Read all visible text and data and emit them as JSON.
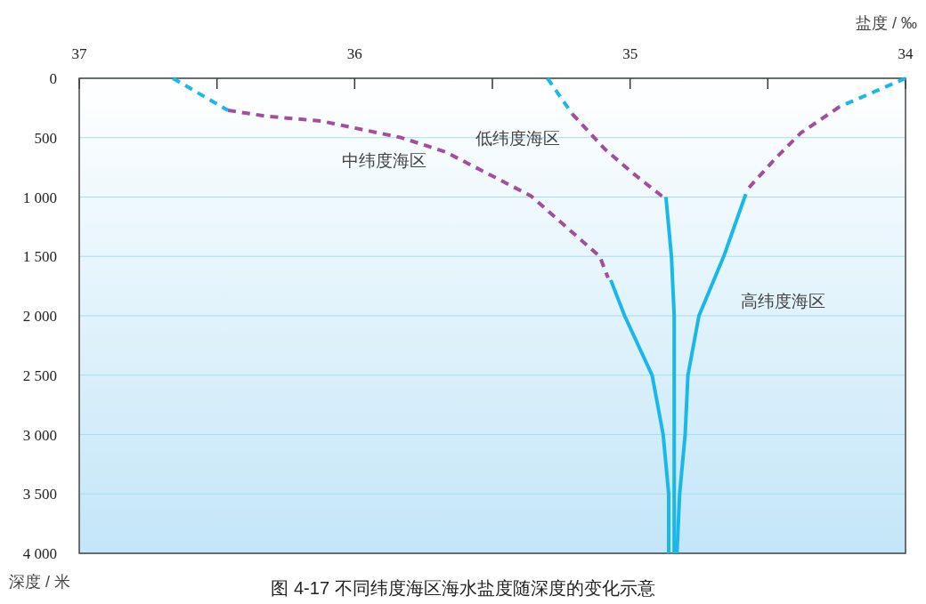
{
  "chart_data": {
    "type": "line",
    "xlabel": "盐度 / ‰",
    "ylabel": "深度 / 米",
    "xlim": [
      37,
      34
    ],
    "xticks": [
      37,
      {
        "value": 36.5,
        "label": null
      },
      36,
      {
        "value": 35.5,
        "label": null
      },
      35,
      {
        "value": 34.5,
        "label": null
      },
      34
    ],
    "ylim": [
      4000,
      0
    ],
    "yticks": [
      0,
      500,
      {
        "value": 1000,
        "label": "1 000"
      },
      {
        "value": 1500,
        "label": "1 500"
      },
      {
        "value": 2000,
        "label": "2 000"
      },
      {
        "value": 2500,
        "label": "2 500"
      },
      {
        "value": 3000,
        "label": "3 000"
      },
      {
        "value": 3500,
        "label": "3 500"
      },
      {
        "value": 4000,
        "label": "4 000"
      }
    ],
    "grid": "y",
    "series": [
      {
        "color": "#1ab8ea",
        "line_style": "dashed",
        "x": [
          35.3,
          35.21
        ],
        "values": [
          0,
          300
        ]
      },
      {
        "name": "低纬度海区",
        "color": "#a04f9e",
        "line_style": "dashed",
        "x": [
          35.21,
          35.09,
          34.99,
          34.88
        ],
        "values": [
          300,
          600,
          800,
          1000
        ]
      },
      {
        "color": "#1ab8ea",
        "line_style": "solid",
        "x": [
          34.87,
          34.85,
          34.84,
          34.84,
          34.84,
          34.84,
          34.84
        ],
        "values": [
          1000,
          1500,
          2000,
          2500,
          3000,
          3500,
          4000
        ]
      },
      {
        "color": "#1ab8ea",
        "line_style": "dashed",
        "x": [
          36.66,
          36.46
        ],
        "values": [
          0,
          270
        ]
      },
      {
        "name": "中纬度海区",
        "color": "#a04f9e",
        "line_style": "dashed",
        "x": [
          36.46,
          36.32,
          36.12,
          35.83,
          35.67,
          35.36,
          35.11,
          35.08
        ],
        "values": [
          270,
          320,
          360,
          500,
          620,
          990,
          1500,
          1680
        ]
      },
      {
        "color": "#1ab8ea",
        "line_style": "solid",
        "x": [
          35.07,
          35.02,
          34.92,
          34.88,
          34.86,
          34.86
        ],
        "values": [
          1700,
          2000,
          2500,
          3000,
          3500,
          4000
        ]
      },
      {
        "color": "#1ab8ea",
        "line_style": "dashed",
        "x": [
          34.0,
          34.24
        ],
        "values": [
          0,
          240
        ]
      },
      {
        "color": "#a04f9e",
        "line_style": "dashed",
        "x": [
          34.24,
          34.38,
          34.47,
          34.58
        ],
        "values": [
          240,
          460,
          670,
          950
        ]
      },
      {
        "name": "高纬度海区",
        "color": "#1ab8ea",
        "line_style": "solid",
        "x": [
          34.58,
          34.66,
          34.75,
          34.79,
          34.8,
          34.82,
          34.83
        ],
        "values": [
          975,
          1500,
          2000,
          2500,
          3000,
          3500,
          4000
        ]
      }
    ],
    "annotations": [
      "图 4-17  不同纬度海区海水盐度随深度的变化示意"
    ]
  }
}
